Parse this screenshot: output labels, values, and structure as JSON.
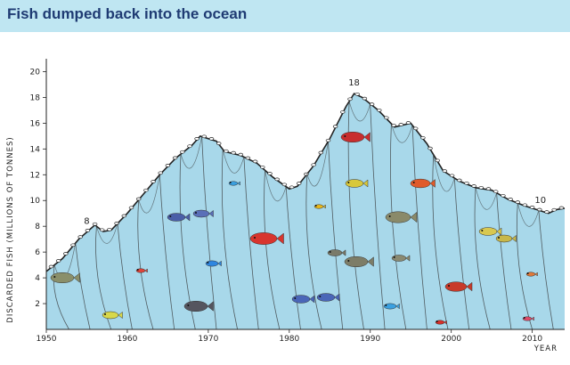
{
  "chart_data": {
    "type": "area",
    "title": "Fish dumped back into the ocean",
    "ylabel": "DISCARDED FISH (MILLIONS OF TONNES)",
    "xlabel": "YEAR",
    "xlim": [
      1950,
      2014
    ],
    "ylim": [
      0,
      21
    ],
    "x_ticks": [
      1950,
      1960,
      1970,
      1980,
      1990,
      2000,
      2010
    ],
    "y_ticks": [
      2,
      4,
      6,
      8,
      10,
      12,
      14,
      16,
      18,
      20
    ],
    "grid": false,
    "legend": "none",
    "colors": {
      "fill": "#a8d8ea",
      "net": "#333333",
      "title": "#1f3b73",
      "header": "#bfe6f2"
    },
    "series": [
      {
        "values": [
          [
            1950,
            4.5
          ],
          [
            1952,
            5.5
          ],
          [
            1954,
            7.0
          ],
          [
            1956,
            8.1
          ],
          [
            1957,
            7.6
          ],
          [
            1958,
            7.7
          ],
          [
            1960,
            9.0
          ],
          [
            1962,
            10.5
          ],
          [
            1964,
            12.0
          ],
          [
            1966,
            13.3
          ],
          [
            1968,
            14.3
          ],
          [
            1969,
            15.0
          ],
          [
            1971,
            14.6
          ],
          [
            1972,
            13.8
          ],
          [
            1974,
            13.5
          ],
          [
            1976,
            12.9
          ],
          [
            1978,
            11.8
          ],
          [
            1980,
            10.9
          ],
          [
            1981,
            11.1
          ],
          [
            1983,
            12.7
          ],
          [
            1985,
            14.8
          ],
          [
            1987,
            17.3
          ],
          [
            1988,
            18.3
          ],
          [
            1989,
            18.0
          ],
          [
            1991,
            17.0
          ],
          [
            1993,
            15.7
          ],
          [
            1995,
            16.0
          ],
          [
            1997,
            14.4
          ],
          [
            1999,
            12.3
          ],
          [
            2001,
            11.5
          ],
          [
            2003,
            11.0
          ],
          [
            2005,
            10.8
          ],
          [
            2007,
            10.1
          ],
          [
            2009,
            9.6
          ],
          [
            2011,
            9.2
          ],
          [
            2012,
            9.0
          ],
          [
            2013,
            9.3
          ],
          [
            2014,
            9.4
          ]
        ]
      }
    ],
    "annotations": [
      {
        "text": "8",
        "x": 1955,
        "y": 8
      },
      {
        "text": "18",
        "x": 1988,
        "y": 18
      },
      {
        "text": "10",
        "x": 2011,
        "y": 10
      }
    ]
  }
}
